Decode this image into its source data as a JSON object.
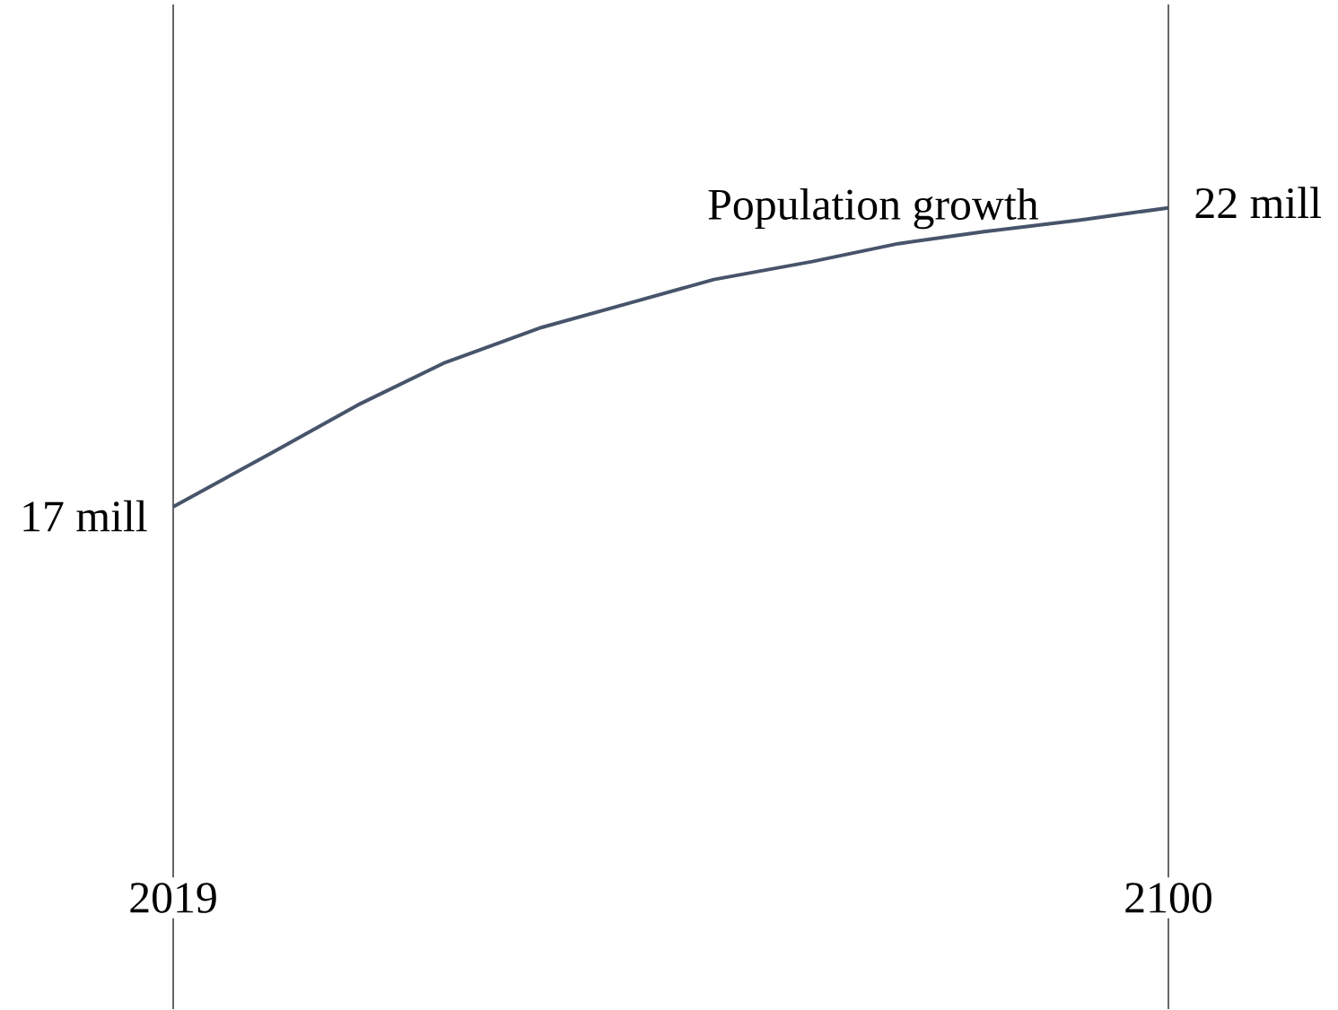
{
  "chart_data": {
    "type": "line",
    "x": [
      2019,
      2027,
      2034,
      2041,
      2049,
      2056,
      2063,
      2071,
      2078,
      2085,
      2093,
      2100
    ],
    "xlim": [
      2019,
      2100
    ],
    "xticks": [
      2019,
      2100
    ],
    "ylim": [
      8.6,
      25.4
    ],
    "grid": "x",
    "tick_labels": "x",
    "series": [
      {
        "name": "Population growth",
        "color": "#47546b",
        "values": [
          17,
          17.9,
          18.7,
          19.4,
          20.0,
          20.4,
          20.8,
          21.1,
          21.4,
          21.6,
          21.8,
          22
        ],
        "value_labels": [
          "17 mill",
          null,
          null,
          null,
          null,
          null,
          null,
          null,
          null,
          null,
          null,
          "22 mill"
        ]
      }
    ]
  }
}
